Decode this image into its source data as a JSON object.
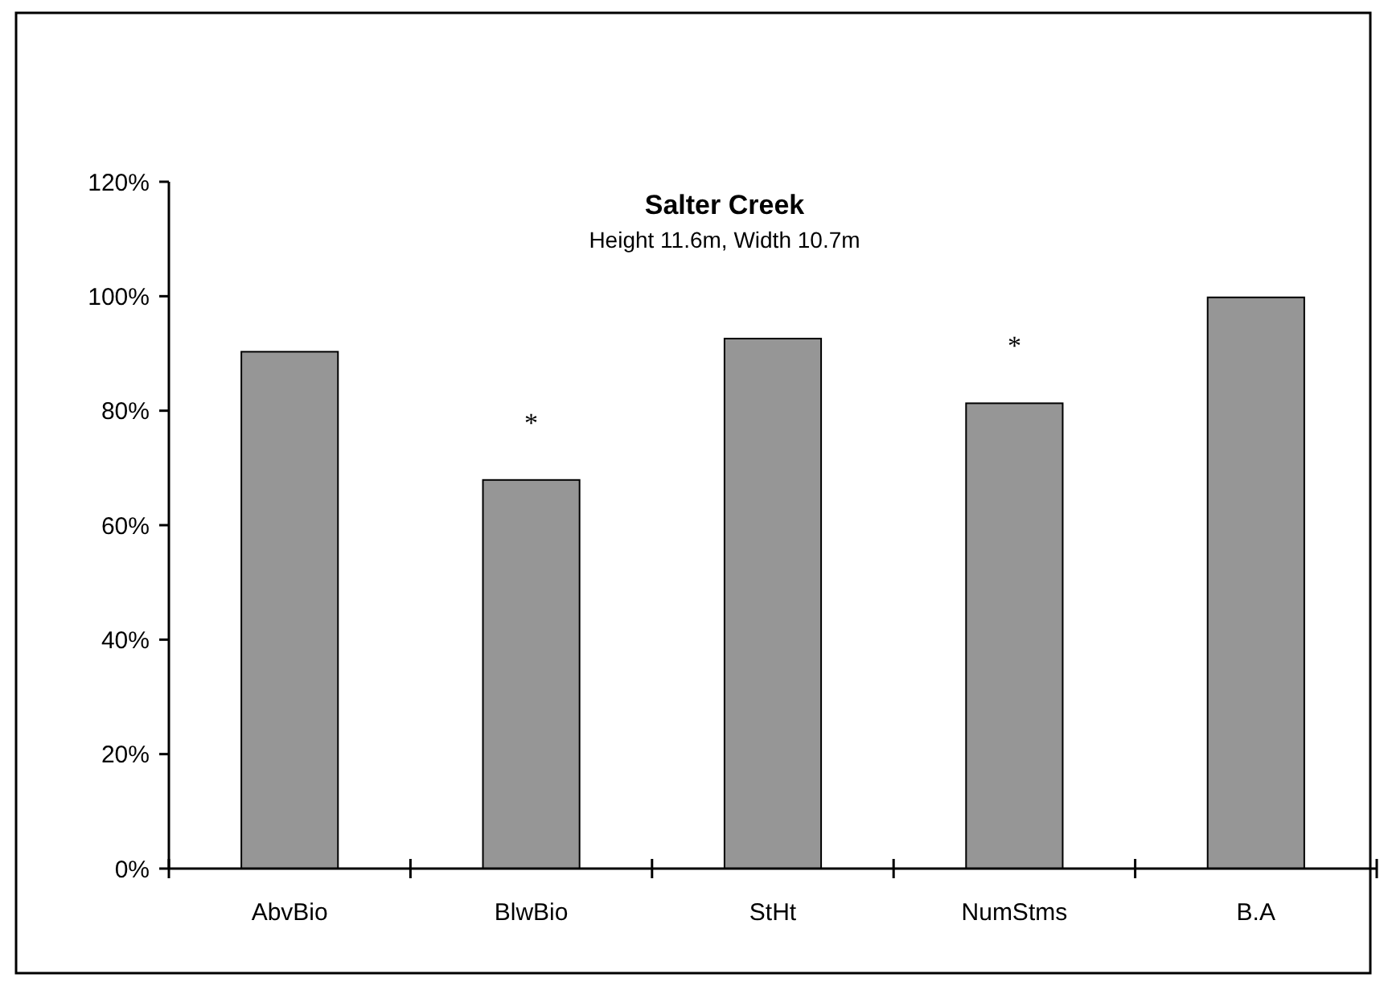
{
  "chart_data": {
    "type": "bar",
    "title": "Salter Creek",
    "subtitle": "Height 11.6m, Width 10.7m",
    "categories": [
      "AbvBio",
      "BlwBio",
      "StHt",
      "NumStms",
      "B.A"
    ],
    "values": [
      90.3,
      67.9,
      92.6,
      81.3,
      99.8
    ],
    "color": "#969696",
    "ylim": [
      0,
      120
    ],
    "yticks": [
      {
        "value": 0,
        "label": "0%"
      },
      {
        "value": 20,
        "label": "20%"
      },
      {
        "value": 40,
        "label": "40%"
      },
      {
        "value": 60,
        "label": "60%"
      },
      {
        "value": 80,
        "label": "80%"
      },
      {
        "value": 100,
        "label": "100%"
      },
      {
        "value": 120,
        "label": "120%"
      }
    ],
    "value_labels": [
      null,
      "*",
      null,
      "*",
      null
    ],
    "grid": false
  }
}
